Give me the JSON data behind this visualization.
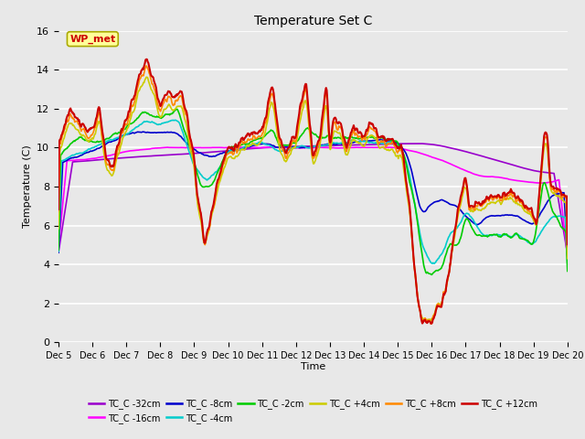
{
  "title": "Temperature Set C",
  "xlabel": "Time",
  "ylabel": "Temperature (C)",
  "ylim": [
    0,
    16
  ],
  "yticks": [
    0,
    2,
    4,
    6,
    8,
    10,
    12,
    14,
    16
  ],
  "plot_bg": "#e8e8e8",
  "fig_bg": "#e8e8e8",
  "series": [
    {
      "label": "TC_C -32cm",
      "color": "#9900cc"
    },
    {
      "label": "TC_C -16cm",
      "color": "#ff00ff"
    },
    {
      "label": "TC_C -8cm",
      "color": "#0000cc"
    },
    {
      "label": "TC_C -4cm",
      "color": "#00cccc"
    },
    {
      "label": "TC_C -2cm",
      "color": "#00cc00"
    },
    {
      "label": "TC_C +4cm",
      "color": "#cccc00"
    },
    {
      "label": "TC_C +8cm",
      "color": "#ff8800"
    },
    {
      "label": "TC_C +12cm",
      "color": "#cc0000"
    }
  ],
  "wp_met_label": "WP_met",
  "wp_met_color": "#cc0000",
  "wp_met_bg": "#ffff99",
  "xtick_labels": [
    "Dec 5",
    "Dec 6",
    "Dec 7",
    "Dec 8",
    "Dec 9",
    "Dec 10",
    "Dec 11",
    "Dec 12",
    "Dec 13",
    "Dec 14",
    "Dec 15",
    "Dec 16",
    "Dec 17",
    "Dec 18",
    "Dec 19",
    "Dec 20"
  ],
  "xtick_positions": [
    5,
    6,
    7,
    8,
    9,
    10,
    11,
    12,
    13,
    14,
    15,
    16,
    17,
    18,
    19,
    20
  ],
  "x_start": 5,
  "x_end": 20,
  "n_points": 720
}
